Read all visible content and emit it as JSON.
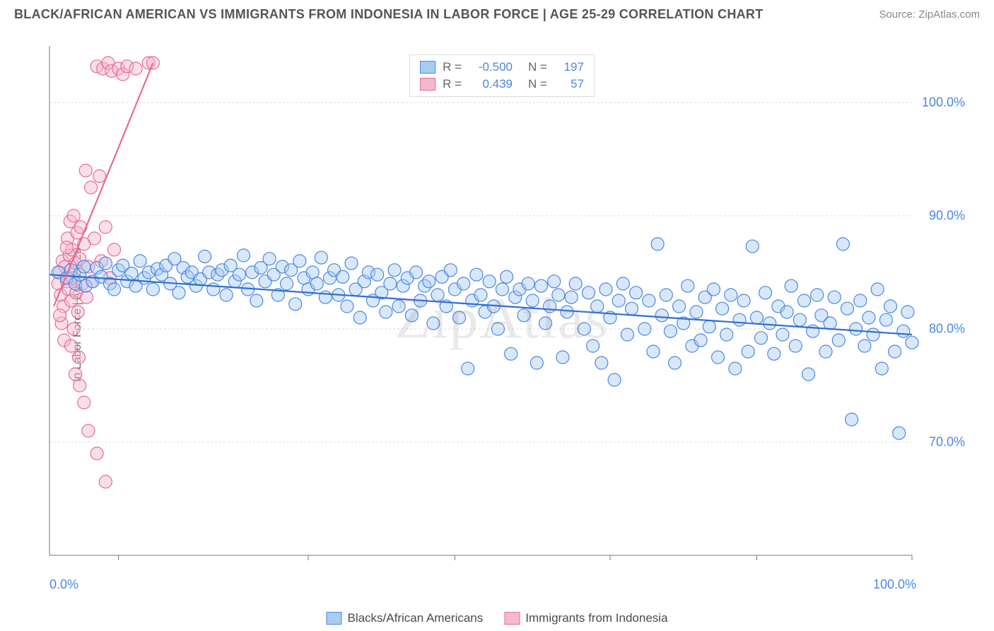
{
  "title": "BLACK/AFRICAN AMERICAN VS IMMIGRANTS FROM INDONESIA IN LABOR FORCE | AGE 25-29 CORRELATION CHART",
  "source": "Source: ZipAtlas.com",
  "watermark": "ZipAtlas",
  "ylabel": "In Labor Force | Age 25-29",
  "chart": {
    "type": "scatter-with-trendlines",
    "background_color": "#ffffff",
    "grid_color": "#dddddd",
    "axis_color": "#777777",
    "label_color": "#4a86e8",
    "label_fontsize": 18,
    "xlim": [
      0,
      100
    ],
    "ylim": [
      60,
      105
    ],
    "x_ticks": [
      0,
      100
    ],
    "x_tick_labels": [
      "0.0%",
      "100.0%"
    ],
    "x_minor_ticks": [
      8,
      30,
      47,
      65,
      82,
      100
    ],
    "y_ticks": [
      70,
      80,
      90,
      100
    ],
    "y_tick_labels": [
      "70.0%",
      "80.0%",
      "90.0%",
      "100.0%"
    ],
    "marker_radius": 9,
    "marker_stroke_width": 1.2,
    "marker_opacity": 0.45,
    "trend_line_width": 2.2,
    "series": [
      {
        "id": "blue",
        "label": "Blacks/African Americans",
        "fill": "#a8cdf2",
        "stroke": "#4a86e8",
        "line_color": "#2f6fd1",
        "R": "-0.500",
        "N": "197",
        "trend": {
          "x1": 0,
          "y1": 84.8,
          "x2": 100,
          "y2": 79.5
        },
        "points": [
          [
            1,
            85
          ],
          [
            2,
            84.5
          ],
          [
            2.5,
            85.2
          ],
          [
            3,
            84
          ],
          [
            3.5,
            84.8
          ],
          [
            4,
            85.5
          ],
          [
            4.2,
            83.8
          ],
          [
            5,
            84.2
          ],
          [
            5.5,
            85.4
          ],
          [
            6,
            84.6
          ],
          [
            6.5,
            85.8
          ],
          [
            7,
            84
          ],
          [
            7.5,
            83.5
          ],
          [
            8,
            85.2
          ],
          [
            8.5,
            85.6
          ],
          [
            9,
            84.2
          ],
          [
            9.5,
            84.9
          ],
          [
            10,
            83.8
          ],
          [
            10.5,
            86
          ],
          [
            11,
            84.5
          ],
          [
            11.5,
            85
          ],
          [
            12,
            83.5
          ],
          [
            12.5,
            85.3
          ],
          [
            13,
            84.8
          ],
          [
            13.5,
            85.6
          ],
          [
            14,
            84
          ],
          [
            14.5,
            86.2
          ],
          [
            15,
            83.2
          ],
          [
            15.5,
            85.4
          ],
          [
            16,
            84.6
          ],
          [
            16.5,
            85
          ],
          [
            17,
            83.8
          ],
          [
            17.5,
            84.4
          ],
          [
            18,
            86.4
          ],
          [
            18.5,
            85
          ],
          [
            19,
            83.5
          ],
          [
            19.5,
            84.8
          ],
          [
            20,
            85.2
          ],
          [
            20.5,
            83
          ],
          [
            21,
            85.6
          ],
          [
            21.5,
            84.2
          ],
          [
            22,
            84.8
          ],
          [
            22.5,
            86.5
          ],
          [
            23,
            83.5
          ],
          [
            23.5,
            85
          ],
          [
            24,
            82.5
          ],
          [
            24.5,
            85.4
          ],
          [
            25,
            84.2
          ],
          [
            25.5,
            86.2
          ],
          [
            26,
            84.8
          ],
          [
            26.5,
            83
          ],
          [
            27,
            85.5
          ],
          [
            27.5,
            84
          ],
          [
            28,
            85.2
          ],
          [
            28.5,
            82.2
          ],
          [
            29,
            86
          ],
          [
            29.5,
            84.5
          ],
          [
            30,
            83.5
          ],
          [
            30.5,
            85
          ],
          [
            31,
            84
          ],
          [
            31.5,
            86.3
          ],
          [
            32,
            82.8
          ],
          [
            32.5,
            84.5
          ],
          [
            33,
            85.2
          ],
          [
            33.5,
            83
          ],
          [
            34,
            84.6
          ],
          [
            34.5,
            82
          ],
          [
            35,
            85.8
          ],
          [
            35.5,
            83.5
          ],
          [
            36,
            81
          ],
          [
            36.5,
            84.2
          ],
          [
            37,
            85
          ],
          [
            37.5,
            82.5
          ],
          [
            38,
            84.8
          ],
          [
            38.5,
            83.2
          ],
          [
            39,
            81.5
          ],
          [
            39.5,
            84
          ],
          [
            40,
            85.2
          ],
          [
            40.5,
            82
          ],
          [
            41,
            83.8
          ],
          [
            41.5,
            84.5
          ],
          [
            42,
            81.2
          ],
          [
            42.5,
            85
          ],
          [
            43,
            82.5
          ],
          [
            43.5,
            83.8
          ],
          [
            44,
            84.2
          ],
          [
            44.5,
            80.5
          ],
          [
            45,
            83
          ],
          [
            45.5,
            84.6
          ],
          [
            46,
            82
          ],
          [
            46.5,
            85.2
          ],
          [
            47,
            83.5
          ],
          [
            47.5,
            81
          ],
          [
            48,
            84
          ],
          [
            48.5,
            76.5
          ],
          [
            49,
            82.5
          ],
          [
            49.5,
            84.8
          ],
          [
            50,
            83
          ],
          [
            50.5,
            81.5
          ],
          [
            51,
            84.2
          ],
          [
            51.5,
            82
          ],
          [
            52,
            80
          ],
          [
            52.5,
            83.5
          ],
          [
            53,
            84.6
          ],
          [
            53.5,
            77.8
          ],
          [
            54,
            82.8
          ],
          [
            54.5,
            83.5
          ],
          [
            55,
            81.2
          ],
          [
            55.5,
            84
          ],
          [
            56,
            82.5
          ],
          [
            56.5,
            77
          ],
          [
            57,
            83.8
          ],
          [
            57.5,
            80.5
          ],
          [
            58,
            82
          ],
          [
            58.5,
            84.2
          ],
          [
            59,
            83
          ],
          [
            59.5,
            77.5
          ],
          [
            60,
            81.5
          ],
          [
            60.5,
            82.8
          ],
          [
            61,
            84
          ],
          [
            62,
            80
          ],
          [
            62.5,
            83.2
          ],
          [
            63,
            78.5
          ],
          [
            63.5,
            82
          ],
          [
            64,
            77
          ],
          [
            64.5,
            83.5
          ],
          [
            65,
            81
          ],
          [
            65.5,
            75.5
          ],
          [
            66,
            82.5
          ],
          [
            66.5,
            84
          ],
          [
            67,
            79.5
          ],
          [
            67.5,
            81.8
          ],
          [
            68,
            83.2
          ],
          [
            69,
            80
          ],
          [
            69.5,
            82.5
          ],
          [
            70,
            78
          ],
          [
            70.5,
            87.5
          ],
          [
            71,
            81.2
          ],
          [
            71.5,
            83
          ],
          [
            72,
            79.8
          ],
          [
            72.5,
            77
          ],
          [
            73,
            82
          ],
          [
            73.5,
            80.5
          ],
          [
            74,
            83.8
          ],
          [
            74.5,
            78.5
          ],
          [
            75,
            81.5
          ],
          [
            75.5,
            79
          ],
          [
            76,
            82.8
          ],
          [
            76.5,
            80.2
          ],
          [
            77,
            83.5
          ],
          [
            77.5,
            77.5
          ],
          [
            78,
            81.8
          ],
          [
            78.5,
            79.5
          ],
          [
            79,
            83
          ],
          [
            79.5,
            76.5
          ],
          [
            80,
            80.8
          ],
          [
            80.5,
            82.5
          ],
          [
            81,
            78
          ],
          [
            81.5,
            87.3
          ],
          [
            82,
            81
          ],
          [
            82.5,
            79.2
          ],
          [
            83,
            83.2
          ],
          [
            83.5,
            80.5
          ],
          [
            84,
            77.8
          ],
          [
            84.5,
            82
          ],
          [
            85,
            79.5
          ],
          [
            85.5,
            81.5
          ],
          [
            86,
            83.8
          ],
          [
            86.5,
            78.5
          ],
          [
            87,
            80.8
          ],
          [
            87.5,
            82.5
          ],
          [
            88,
            76
          ],
          [
            88.5,
            79.8
          ],
          [
            89,
            83
          ],
          [
            89.5,
            81.2
          ],
          [
            90,
            78
          ],
          [
            90.5,
            80.5
          ],
          [
            91,
            82.8
          ],
          [
            91.5,
            79
          ],
          [
            92,
            87.5
          ],
          [
            92.5,
            81.8
          ],
          [
            93,
            72
          ],
          [
            93.5,
            80
          ],
          [
            94,
            82.5
          ],
          [
            94.5,
            78.5
          ],
          [
            95,
            81
          ],
          [
            95.5,
            79.5
          ],
          [
            96,
            83.5
          ],
          [
            96.5,
            76.5
          ],
          [
            97,
            80.8
          ],
          [
            97.5,
            82
          ],
          [
            98,
            78
          ],
          [
            98.5,
            70.8
          ],
          [
            99,
            79.8
          ],
          [
            99.5,
            81.5
          ],
          [
            100,
            78.8
          ]
        ]
      },
      {
        "id": "pink",
        "label": "Immigrants from Indonesia",
        "fill": "#f5b9cb",
        "stroke": "#e86a92",
        "line_color": "#e86a92",
        "R": "0.439",
        "N": "57",
        "trend": {
          "x1": 0.5,
          "y1": 82,
          "x2": 12,
          "y2": 103.5
        },
        "points": [
          [
            1,
            84
          ],
          [
            1.2,
            85
          ],
          [
            1.3,
            83
          ],
          [
            1.5,
            86
          ],
          [
            1.6,
            82
          ],
          [
            1.8,
            85.5
          ],
          [
            2,
            84.2
          ],
          [
            2.1,
            88
          ],
          [
            2.2,
            83.5
          ],
          [
            2.3,
            86.5
          ],
          [
            2.4,
            89.5
          ],
          [
            2.5,
            82.5
          ],
          [
            2.6,
            87
          ],
          [
            2.7,
            84.5
          ],
          [
            2.8,
            90
          ],
          [
            3,
            85.8
          ],
          [
            3.1,
            83.2
          ],
          [
            3.2,
            88.5
          ],
          [
            3.3,
            81.5
          ],
          [
            3.5,
            86.2
          ],
          [
            3.6,
            89
          ],
          [
            3.8,
            84
          ],
          [
            4,
            87.5
          ],
          [
            4.2,
            94
          ],
          [
            4.3,
            82.8
          ],
          [
            4.5,
            85.5
          ],
          [
            4.8,
            92.5
          ],
          [
            5,
            84.2
          ],
          [
            5.2,
            88
          ],
          [
            5.5,
            103.2
          ],
          [
            5.8,
            93.5
          ],
          [
            6,
            86
          ],
          [
            6.2,
            103
          ],
          [
            6.5,
            89
          ],
          [
            6.8,
            103.5
          ],
          [
            7,
            84.5
          ],
          [
            7.2,
            102.8
          ],
          [
            7.5,
            87
          ],
          [
            8,
            103
          ],
          [
            8.5,
            102.5
          ],
          [
            9,
            103.2
          ],
          [
            1.4,
            80.5
          ],
          [
            1.7,
            79
          ],
          [
            2.5,
            78.5
          ],
          [
            3,
            76
          ],
          [
            3.5,
            75
          ],
          [
            4,
            73.5
          ],
          [
            4.5,
            71
          ],
          [
            1.2,
            81.2
          ],
          [
            2.8,
            80
          ],
          [
            3.4,
            77.5
          ],
          [
            5.5,
            69
          ],
          [
            6.5,
            66.5
          ],
          [
            11.5,
            103.5
          ],
          [
            12,
            103.5
          ],
          [
            10,
            103
          ],
          [
            2,
            87.2
          ]
        ]
      }
    ]
  },
  "legend_top": {
    "rows": [
      {
        "sw_fill": "#a8cdf2",
        "sw_stroke": "#4a86e8",
        "R": "-0.500",
        "N": "197"
      },
      {
        "sw_fill": "#f5b9cb",
        "sw_stroke": "#e86a92",
        "R": "0.439",
        "N": "57"
      }
    ]
  },
  "legend_bottom": {
    "items": [
      {
        "sw_fill": "#a8cdf2",
        "sw_stroke": "#4a86e8",
        "label": "Blacks/African Americans"
      },
      {
        "sw_fill": "#f5b9cb",
        "sw_stroke": "#e86a92",
        "label": "Immigrants from Indonesia"
      }
    ]
  }
}
